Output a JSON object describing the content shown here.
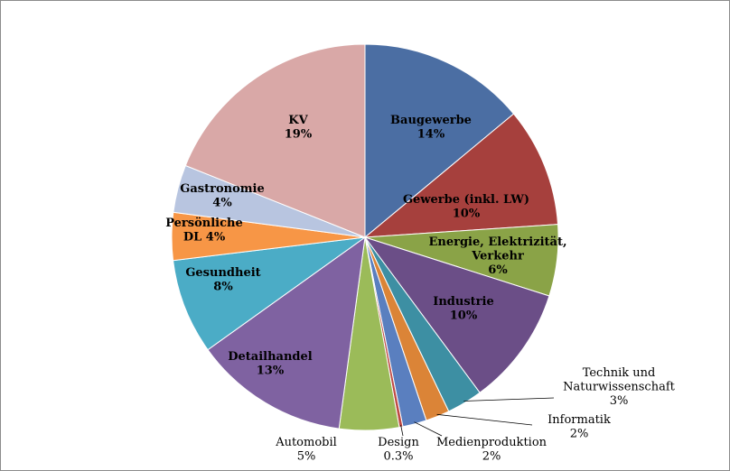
{
  "chart_data": {
    "type": "pie",
    "title": "",
    "start_angle_deg": 0,
    "direction": "clockwise",
    "slices": [
      {
        "name": "Baugewerbe",
        "label_lines": [
          "Baugewerbe",
          "14%"
        ],
        "value": 14,
        "color": "#4b6ea3",
        "label_position": "inside"
      },
      {
        "name": "Gewerbe (inkl. LW)",
        "label_lines": [
          "Gewerbe (inkl. LW)",
          "10%"
        ],
        "value": 10,
        "color": "#a6403d",
        "label_position": "inside"
      },
      {
        "name": "Energie, Elektrizität, Verkehr",
        "label_lines": [
          "Energie, Elektrizität,",
          "Verkehr",
          "6%"
        ],
        "value": 6,
        "color": "#8aa347",
        "label_position": "inside"
      },
      {
        "name": "Industrie",
        "label_lines": [
          "Industrie",
          "10%"
        ],
        "value": 10,
        "color": "#6b4e87",
        "label_position": "inside"
      },
      {
        "name": "Technik und Naturwissenschaft",
        "label_lines": [
          "Technik und",
          "Naturwissenschaft",
          "3%"
        ],
        "value": 3,
        "color": "#3d8fa3",
        "label_position": "outside"
      },
      {
        "name": "Informatik",
        "label_lines": [
          "Informatik",
          "2%"
        ],
        "value": 2,
        "color": "#db8437",
        "label_position": "outside"
      },
      {
        "name": "Medienproduktion",
        "label_lines": [
          "Medienproduktion",
          "2%"
        ],
        "value": 2,
        "color": "#5a7fbf",
        "label_position": "outside"
      },
      {
        "name": "Design",
        "label_lines": [
          "Design",
          "0.3%"
        ],
        "value": 0.3,
        "color": "#bf4a45",
        "label_position": "outside"
      },
      {
        "name": "Automobil",
        "label_lines": [
          "Automobil",
          "5%"
        ],
        "value": 5,
        "color": "#9bbb59",
        "label_position": "outside"
      },
      {
        "name": "Detailhandel",
        "label_lines": [
          "Detailhandel",
          "13%"
        ],
        "value": 13,
        "color": "#7f62a1",
        "label_position": "inside"
      },
      {
        "name": "Gesundheit",
        "label_lines": [
          "Gesundheit",
          "8%"
        ],
        "value": 8,
        "color": "#4bacc6",
        "label_position": "inside"
      },
      {
        "name": "Persönliche DL",
        "label_lines": [
          "Persönliche",
          "DL 4%"
        ],
        "value": 4,
        "color": "#f79646",
        "label_position": "inside"
      },
      {
        "name": "Gastronomie",
        "label_lines": [
          "Gastronomie",
          "4%"
        ],
        "value": 4,
        "color": "#b8c5e0",
        "label_position": "inside"
      },
      {
        "name": "KV",
        "label_lines": [
          "KV",
          "19%"
        ],
        "value": 19,
        "color": "#d9a8a7",
        "label_position": "inside"
      }
    ],
    "legend": "none",
    "slice_border_color": "#ffffff"
  }
}
